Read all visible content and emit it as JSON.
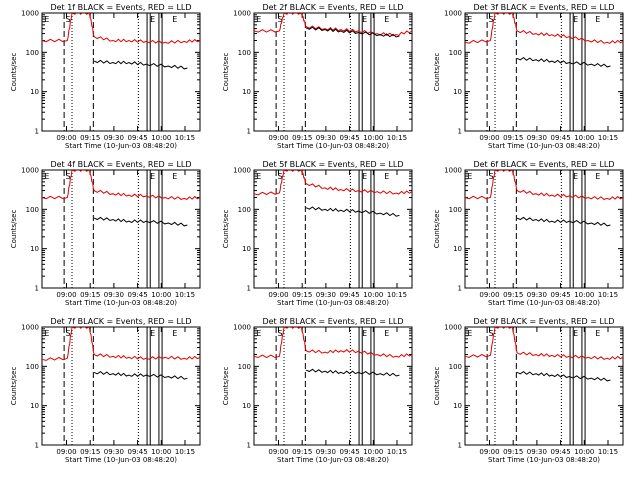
{
  "chart_data": [
    {
      "type": "line",
      "title": "Det 1f BLACK = Events, RED = LLD",
      "xlabel": "Start Time (10-Jun-03 08:48:20)",
      "ylabel": "Counts/sec",
      "ylog": true,
      "ylim": [
        1,
        1000
      ],
      "xticklabels": [
        "09:00",
        "09:15",
        "09:30",
        "09:45",
        "10:00",
        "10:15"
      ],
      "yticklabels": [
        "1",
        "10",
        "100",
        "1000"
      ],
      "markers": [
        "E",
        "S",
        "E",
        "E"
      ],
      "series": [
        {
          "color": "#e00000",
          "values": [
            200,
            200,
            1000,
            1000,
            250,
            200,
            200,
            190,
            180,
            190,
            200
          ]
        },
        {
          "color": "#000000",
          "values": [
            60,
            55,
            55,
            50,
            45,
            40
          ]
        }
      ]
    },
    {
      "type": "line",
      "title": "Det 2f BLACK = Events, RED = LLD",
      "xlabel": "Start Time (10-Jun-03 08:48:20)",
      "ylabel": "Counts/sec",
      "ylog": true,
      "ylim": [
        1,
        1000
      ],
      "xticklabels": [
        "09:00",
        "09:15",
        "09:30",
        "09:45",
        "10:00",
        "10:15"
      ],
      "yticklabels": [
        "1",
        "10",
        "100",
        "1000"
      ],
      "markers": [
        "E",
        "S",
        "E",
        "E"
      ],
      "series": [
        {
          "color": "#e00000",
          "values": [
            350,
            350,
            1000,
            1000,
            450,
            400,
            380,
            350,
            300,
            280,
            350
          ]
        },
        {
          "color": "#000000",
          "values": [
            420,
            380,
            350,
            320,
            280,
            260
          ]
        }
      ]
    },
    {
      "type": "line",
      "title": "Det 3f BLACK = Events, RED = LLD",
      "xlabel": "Start Time (10-Jun-03 08:48:20)",
      "ylabel": "Counts/sec",
      "ylog": true,
      "ylim": [
        1,
        1000
      ],
      "xticklabels": [
        "09:00",
        "09:15",
        "09:30",
        "09:45",
        "10:00",
        "10:15"
      ],
      "yticklabels": [
        "1",
        "10",
        "100",
        "1000"
      ],
      "markers": [
        "E",
        "S",
        "E",
        "E"
      ],
      "series": [
        {
          "color": "#e00000",
          "values": [
            180,
            200,
            1000,
            1000,
            350,
            300,
            280,
            250,
            200,
            180,
            190
          ]
        },
        {
          "color": "#000000",
          "values": [
            70,
            65,
            60,
            55,
            50,
            45
          ]
        }
      ]
    },
    {
      "type": "line",
      "title": "Det 4f BLACK = Events, RED = LLD",
      "xlabel": "Start Time (10-Jun-03 08:48:20)",
      "ylabel": "Counts/sec",
      "ylog": true,
      "ylim": [
        1,
        1000
      ],
      "xticklabels": [
        "09:00",
        "09:15",
        "09:30",
        "09:45",
        "10:00",
        "10:15"
      ],
      "yticklabels": [
        "1",
        "10",
        "100",
        "1000"
      ],
      "markers": [
        "E",
        "S",
        "E",
        "E"
      ],
      "series": [
        {
          "color": "#e00000",
          "values": [
            200,
            200,
            1000,
            1000,
            300,
            250,
            230,
            220,
            200,
            190,
            200
          ]
        },
        {
          "color": "#000000",
          "values": [
            60,
            55,
            50,
            50,
            45,
            40
          ]
        }
      ]
    },
    {
      "type": "line",
      "title": "Det 5f BLACK = Events, RED = LLD",
      "xlabel": "Start Time (10-Jun-03 08:48:20)",
      "ylabel": "Counts/sec",
      "ylog": true,
      "ylim": [
        1,
        1000
      ],
      "xticklabels": [
        "09:00",
        "09:15",
        "09:30",
        "09:45",
        "10:00",
        "10:15"
      ],
      "yticklabels": [
        "1",
        "10",
        "100",
        "1000"
      ],
      "markers": [
        "E",
        "S",
        "E",
        "E"
      ],
      "series": [
        {
          "color": "#e00000",
          "values": [
            250,
            260,
            1000,
            1000,
            450,
            350,
            320,
            300,
            280,
            260,
            280
          ]
        },
        {
          "color": "#000000",
          "values": [
            110,
            100,
            95,
            90,
            80,
            70
          ]
        }
      ]
    },
    {
      "type": "line",
      "title": "Det 6f BLACK = Events, RED = LLD",
      "xlabel": "Start Time (10-Jun-03 08:48:20)",
      "ylabel": "Counts/sec",
      "ylog": true,
      "ylim": [
        1,
        1000
      ],
      "xticklabels": [
        "09:00",
        "09:15",
        "09:30",
        "09:45",
        "10:00",
        "10:15"
      ],
      "yticklabels": [
        "1",
        "10",
        "100",
        "1000"
      ],
      "markers": [
        "E",
        "S",
        "E",
        "E"
      ],
      "series": [
        {
          "color": "#e00000",
          "values": [
            200,
            200,
            1000,
            1000,
            300,
            250,
            230,
            220,
            200,
            190,
            200
          ]
        },
        {
          "color": "#000000",
          "values": [
            60,
            55,
            50,
            50,
            45,
            40
          ]
        }
      ]
    },
    {
      "type": "line",
      "title": "Det 7f BLACK = Events, RED = LLD",
      "xlabel": "Start Time (10-Jun-03 08:48:20)",
      "ylabel": "Counts/sec",
      "ylog": true,
      "ylim": [
        1,
        1000
      ],
      "xticklabels": [
        "09:00",
        "09:15",
        "09:30",
        "09:45",
        "10:00",
        "10:15"
      ],
      "yticklabels": [
        "1",
        "10",
        "100",
        "1000"
      ],
      "markers": [
        "E",
        "S",
        "E",
        "E"
      ],
      "series": [
        {
          "color": "#e00000",
          "values": [
            150,
            160,
            1000,
            1000,
            200,
            180,
            170,
            160,
            170,
            160,
            170
          ]
        },
        {
          "color": "#000000",
          "values": [
            70,
            65,
            60,
            60,
            55,
            50
          ]
        }
      ]
    },
    {
      "type": "line",
      "title": "Det 8f BLACK = Events, RED = LLD",
      "xlabel": "Start Time (10-Jun-03 08:48:20)",
      "ylabel": "Counts/sec",
      "ylog": true,
      "ylim": [
        1,
        1000
      ],
      "xticklabels": [
        "09:00",
        "09:15",
        "09:30",
        "09:45",
        "10:00",
        "10:15"
      ],
      "yticklabels": [
        "1",
        "10",
        "100",
        "1000"
      ],
      "markers": [
        "E",
        "S",
        "E",
        "E"
      ],
      "series": [
        {
          "color": "#e00000",
          "values": [
            180,
            180,
            1000,
            1000,
            250,
            230,
            250,
            240,
            200,
            180,
            200
          ]
        },
        {
          "color": "#000000",
          "values": [
            80,
            75,
            70,
            70,
            65,
            60
          ]
        }
      ]
    },
    {
      "type": "line",
      "title": "Det 9f BLACK = Events, RED = LLD",
      "xlabel": "Start Time (10-Jun-03 08:48:20)",
      "ylabel": "Counts/sec",
      "ylog": true,
      "ylim": [
        1,
        1000
      ],
      "xticklabels": [
        "09:00",
        "09:15",
        "09:30",
        "09:45",
        "10:00",
        "10:15"
      ],
      "yticklabels": [
        "1",
        "10",
        "100",
        "1000"
      ],
      "markers": [
        "E",
        "S",
        "E",
        "E"
      ],
      "series": [
        {
          "color": "#e00000",
          "values": [
            180,
            190,
            1000,
            1000,
            220,
            200,
            190,
            180,
            170,
            160,
            170
          ]
        },
        {
          "color": "#000000",
          "values": [
            70,
            65,
            60,
            55,
            50,
            45
          ]
        }
      ]
    }
  ]
}
